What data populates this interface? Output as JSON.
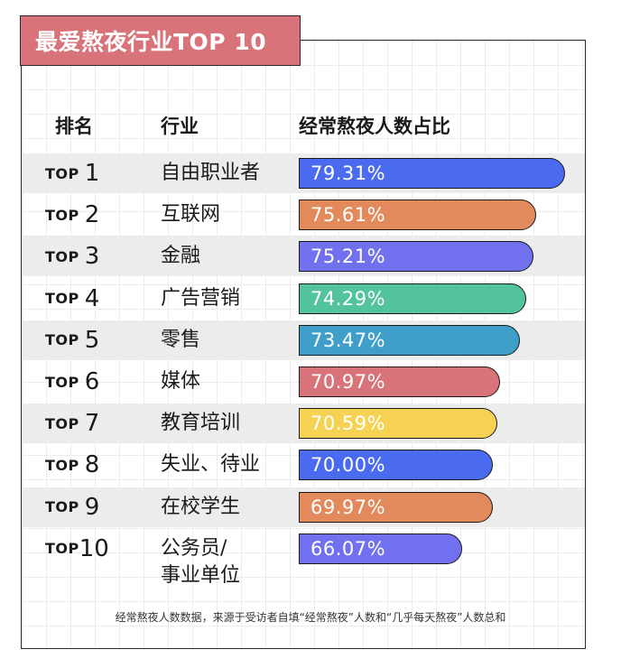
{
  "title": "最爱熬夜行业TOP 10",
  "headers": {
    "rank": "排名",
    "industry": "行业",
    "ratio": "经常熬夜人数占比"
  },
  "footnote": "经常熬夜人数数据，来源于受访者自填“经常熬夜”人数和“几乎每天熬夜”人数总和",
  "chart_data": {
    "type": "bar",
    "title": "最爱熬夜行业TOP 10",
    "ylabel": "经常熬夜人数占比",
    "categories": [
      "自由职业者",
      "互联网",
      "金融",
      "广告营销",
      "零售",
      "媒体",
      "教育培训",
      "失业、待业",
      "在校学生",
      "公务员/事业单位"
    ],
    "values": [
      79.31,
      75.61,
      75.21,
      74.29,
      73.47,
      70.97,
      70.59,
      70.0,
      69.97,
      66.07
    ],
    "rows": [
      {
        "prefix": "TOP",
        "num": "1",
        "industry": "自由职业者",
        "label": "79.31%",
        "value": 79.31,
        "color": "#4a6bef"
      },
      {
        "prefix": "TOP",
        "num": "2",
        "industry": "互联网",
        "label": "75.61%",
        "value": 75.61,
        "color": "#e38a5c"
      },
      {
        "prefix": "TOP",
        "num": "3",
        "industry": "金融",
        "label": "75.21%",
        "value": 75.21,
        "color": "#7170ef"
      },
      {
        "prefix": "TOP",
        "num": "4",
        "industry": "广告营销",
        "label": "74.29%",
        "value": 74.29,
        "color": "#52c39a"
      },
      {
        "prefix": "TOP",
        "num": "5",
        "industry": "零售",
        "label": "73.47%",
        "value": 73.47,
        "color": "#3f9fc8"
      },
      {
        "prefix": "TOP",
        "num": "6",
        "industry": "媒体",
        "label": "70.97%",
        "value": 70.97,
        "color": "#d9737a"
      },
      {
        "prefix": "TOP",
        "num": "7",
        "industry": "教育培训",
        "label": "70.59%",
        "value": 70.59,
        "color": "#f5d253"
      },
      {
        "prefix": "TOP",
        "num": "8",
        "industry": "失业、待业",
        "label": "70.00%",
        "value": 70.0,
        "color": "#4a6bef"
      },
      {
        "prefix": "TOP",
        "num": "9",
        "industry": "在校学生",
        "label": "69.97%",
        "value": 69.97,
        "color": "#e38a5c"
      },
      {
        "prefix": "TOP",
        "num": "10",
        "industry": "公务员/\n事业单位",
        "label": "66.07%",
        "value": 66.07,
        "color": "#7170ef"
      }
    ]
  }
}
